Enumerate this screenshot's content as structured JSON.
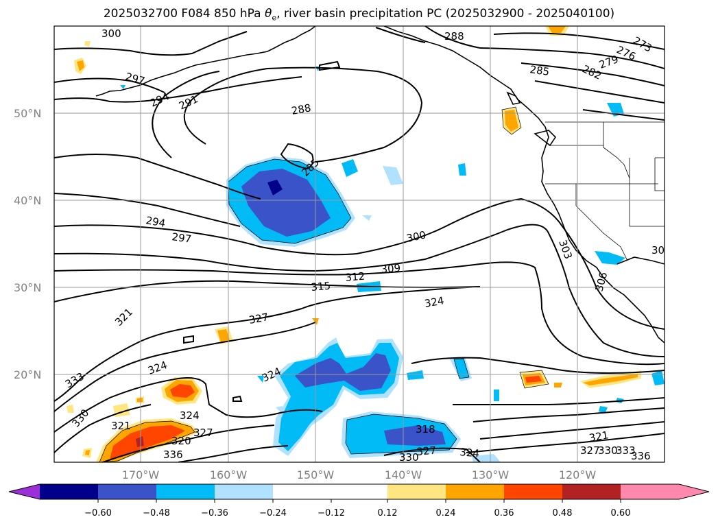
{
  "title": {
    "prefix": "2025032700 F084 850 hPa ",
    "theta": "θ",
    "theta_sub": "e",
    "suffix": ", river basin precipitation PC (2025032900 - 2025040100)"
  },
  "axes": {
    "lat_labels": [
      "50°N",
      "40°N",
      "30°N",
      "20°N"
    ],
    "lon_labels": [
      "170°W",
      "160°W",
      "150°W",
      "140°W",
      "130°W",
      "120°W"
    ]
  },
  "contour_labels": [
    "300",
    "288",
    "273",
    "276",
    "279",
    "282",
    "285",
    "297",
    "294",
    "291",
    "288",
    "285",
    "294",
    "297",
    "300",
    "303",
    "309",
    "312",
    "315",
    "324",
    "321",
    "327",
    "324",
    "324",
    "324",
    "333",
    "330",
    "321",
    "327",
    "320",
    "336",
    "318",
    "327",
    "324",
    "330",
    "321",
    "327",
    "330",
    "333",
    "336",
    "30",
    "306"
  ],
  "colorbar": {
    "ticks": [
      "−0.60",
      "−0.48",
      "−0.36",
      "−0.24",
      "−0.12",
      "0.12",
      "0.24",
      "0.36",
      "0.48",
      "0.60"
    ],
    "colors": {
      "under": "#9b30d8",
      "neg_060": "#00008b",
      "neg_048": "#3a53c8",
      "neg_036": "#00bbf5",
      "neg_024": "#b0e2ff",
      "neutral": "#ffffff",
      "pos_012": "#ffe680",
      "pos_024": "#ffa500",
      "pos_036": "#ff4500",
      "pos_048": "#b22222",
      "over": "#ff89ae"
    }
  }
}
